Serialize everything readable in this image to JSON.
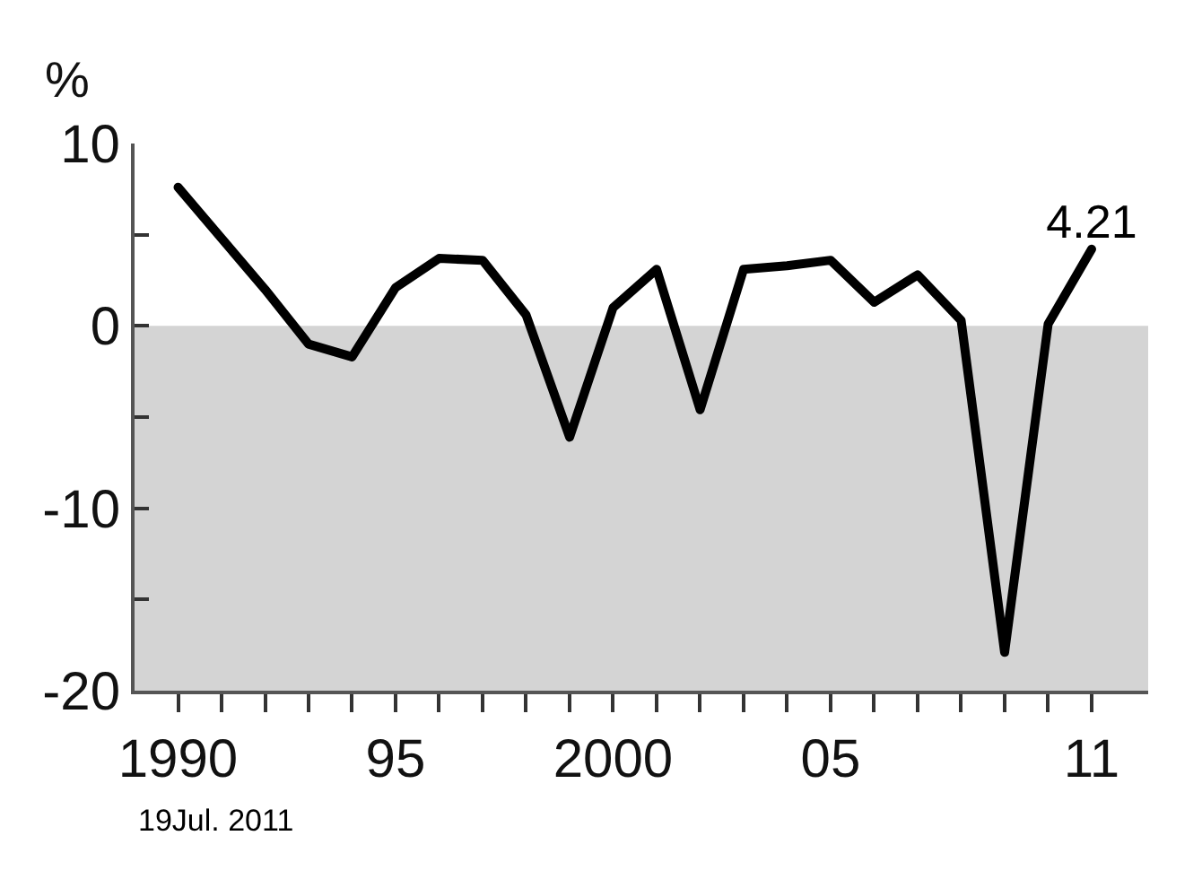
{
  "chart_data": {
    "type": "line",
    "ylabel": "%",
    "x": [
      1990,
      1991,
      1992,
      1993,
      1994,
      1995,
      1996,
      1997,
      1998,
      1999,
      2000,
      2001,
      2002,
      2003,
      2004,
      2005,
      2006,
      2007,
      2008,
      2009,
      2010,
      2011
    ],
    "series": [
      {
        "color": "#000000",
        "values": [
          7.6,
          4.8,
          2.0,
          -1.0,
          -1.7,
          2.1,
          3.7,
          3.6,
          0.6,
          -6.1,
          1.0,
          3.1,
          -4.6,
          3.1,
          3.3,
          3.6,
          1.3,
          2.8,
          0.3,
          -17.9,
          0.1,
          4.21
        ],
        "value_labels": [
          null,
          null,
          null,
          null,
          null,
          null,
          null,
          null,
          null,
          null,
          null,
          null,
          null,
          null,
          null,
          null,
          null,
          null,
          null,
          null,
          null,
          "4.21"
        ]
      }
    ],
    "xlim": [
      1989,
      2012.3
    ],
    "xticks": [
      {
        "value": 1990,
        "label": "1990"
      },
      {
        "value": 1991,
        "label": null
      },
      {
        "value": 1992,
        "label": null
      },
      {
        "value": 1993,
        "label": null
      },
      {
        "value": 1994,
        "label": null
      },
      {
        "value": 1995,
        "label": "95"
      },
      {
        "value": 1996,
        "label": null
      },
      {
        "value": 1997,
        "label": null
      },
      {
        "value": 1998,
        "label": null
      },
      {
        "value": 1999,
        "label": null
      },
      {
        "value": 2000,
        "label": "2000"
      },
      {
        "value": 2001,
        "label": null
      },
      {
        "value": 2002,
        "label": null
      },
      {
        "value": 2003,
        "label": null
      },
      {
        "value": 2004,
        "label": null
      },
      {
        "value": 2005,
        "label": "05"
      },
      {
        "value": 2006,
        "label": null
      },
      {
        "value": 2007,
        "label": null
      },
      {
        "value": 2008,
        "label": null
      },
      {
        "value": 2009,
        "label": null
      },
      {
        "value": 2010,
        "label": null
      },
      {
        "value": 2011,
        "label": "11"
      }
    ],
    "ylim": [
      -20,
      10
    ],
    "yticks": [
      -20,
      {
        "value": -15,
        "label": null
      },
      -10,
      {
        "value": -5,
        "label": null
      },
      0,
      {
        "value": 5,
        "label": null
      },
      10
    ],
    "bands": [
      {
        "axis": "y",
        "from": -20,
        "to": 0,
        "color": "#d4d4d4"
      }
    ],
    "grid": false,
    "marker": "none",
    "line_style": "solid",
    "annotations": [
      "19Jul. 2011"
    ]
  }
}
